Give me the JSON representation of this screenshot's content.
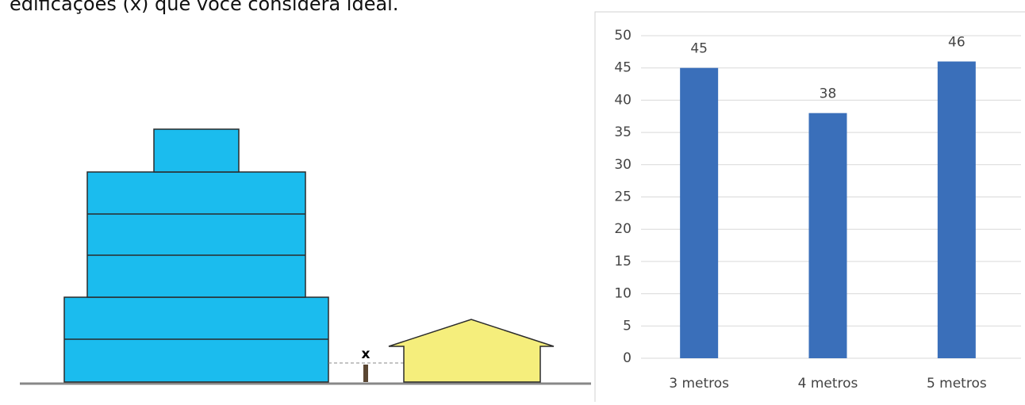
{
  "caption": "edificações (x) que você considera ideal.",
  "diagram": {
    "gap_label": "x"
  },
  "chart_data": {
    "type": "bar",
    "categories": [
      "3 metros",
      "4 metros",
      "5 metros"
    ],
    "values": [
      45,
      38,
      46
    ],
    "color": "#3a6fba",
    "ylim": [
      0,
      50
    ],
    "yticks": [
      0,
      5,
      10,
      15,
      20,
      25,
      30,
      35,
      40,
      45,
      50
    ],
    "grid": true
  }
}
